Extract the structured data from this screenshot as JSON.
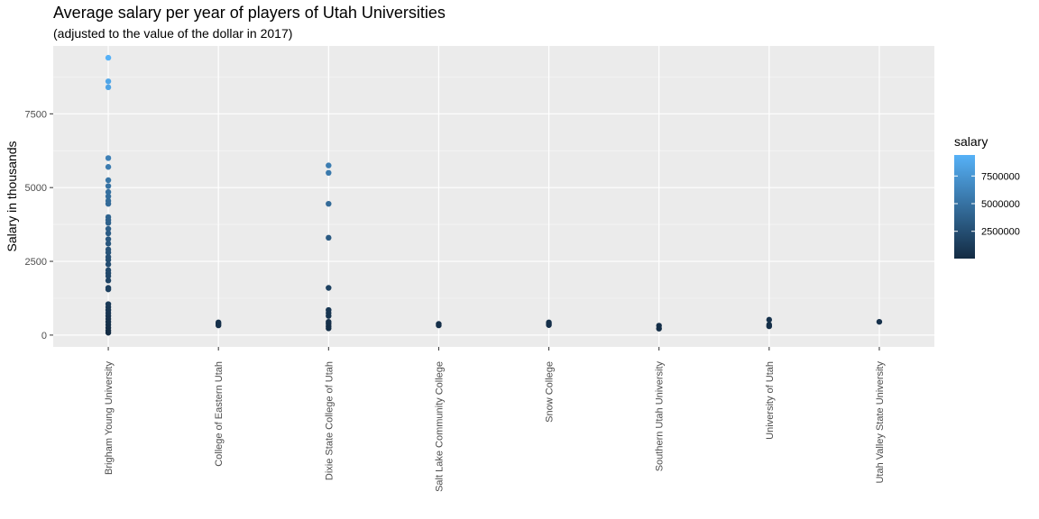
{
  "chart_data": {
    "type": "scatter",
    "title": "Average salary per year of players of Utah Universities",
    "subtitle": "(adjusted to the value of the dollar in 2017)",
    "xlabel": "",
    "ylabel": "Salary in thousands",
    "categories": [
      "Brigham Young University",
      "College of Eastern Utah",
      "Dixie State College of Utah",
      "Salt Lake Community College",
      "Snow College",
      "Southern Utah University",
      "University of Utah",
      "Utah Valley State University"
    ],
    "ylim": [
      -400,
      9800
    ],
    "yticks": [
      0,
      2500,
      5000,
      7500
    ],
    "grid": true,
    "legend": {
      "title": "salary",
      "placement": "right",
      "labels": [
        "7500000",
        "5000000",
        "2500000"
      ],
      "label_values": [
        7500000,
        5000000,
        2500000
      ],
      "range": [
        30000,
        9400000
      ],
      "color_low": "#132B43",
      "color_high": "#56B1F7"
    },
    "colors": {
      "panel": "#EBEBEB",
      "grid_major": "#FFFFFF",
      "grid_minor": "#F5F5F5"
    },
    "points": [
      {
        "category": "Brigham Young University",
        "y": 9400
      },
      {
        "category": "Brigham Young University",
        "y": 8600
      },
      {
        "category": "Brigham Young University",
        "y": 8400
      },
      {
        "category": "Brigham Young University",
        "y": 6000
      },
      {
        "category": "Brigham Young University",
        "y": 5700
      },
      {
        "category": "Brigham Young University",
        "y": 5250
      },
      {
        "category": "Brigham Young University",
        "y": 5050
      },
      {
        "category": "Brigham Young University",
        "y": 4850
      },
      {
        "category": "Brigham Young University",
        "y": 4700
      },
      {
        "category": "Brigham Young University",
        "y": 4550
      },
      {
        "category": "Brigham Young University",
        "y": 4450
      },
      {
        "category": "Brigham Young University",
        "y": 4000
      },
      {
        "category": "Brigham Young University",
        "y": 3900
      },
      {
        "category": "Brigham Young University",
        "y": 3800
      },
      {
        "category": "Brigham Young University",
        "y": 3600
      },
      {
        "category": "Brigham Young University",
        "y": 3450
      },
      {
        "category": "Brigham Young University",
        "y": 3250
      },
      {
        "category": "Brigham Young University",
        "y": 3100
      },
      {
        "category": "Brigham Young University",
        "y": 2900
      },
      {
        "category": "Brigham Young University",
        "y": 2800
      },
      {
        "category": "Brigham Young University",
        "y": 2650
      },
      {
        "category": "Brigham Young University",
        "y": 2550
      },
      {
        "category": "Brigham Young University",
        "y": 2400
      },
      {
        "category": "Brigham Young University",
        "y": 2200
      },
      {
        "category": "Brigham Young University",
        "y": 2100
      },
      {
        "category": "Brigham Young University",
        "y": 2000
      },
      {
        "category": "Brigham Young University",
        "y": 1850
      },
      {
        "category": "Brigham Young University",
        "y": 1600
      },
      {
        "category": "Brigham Young University",
        "y": 1550
      },
      {
        "category": "Brigham Young University",
        "y": 1050
      },
      {
        "category": "Brigham Young University",
        "y": 950
      },
      {
        "category": "Brigham Young University",
        "y": 850
      },
      {
        "category": "Brigham Young University",
        "y": 750
      },
      {
        "category": "Brigham Young University",
        "y": 650
      },
      {
        "category": "Brigham Young University",
        "y": 550
      },
      {
        "category": "Brigham Young University",
        "y": 450
      },
      {
        "category": "Brigham Young University",
        "y": 350
      },
      {
        "category": "Brigham Young University",
        "y": 250
      },
      {
        "category": "Brigham Young University",
        "y": 150
      },
      {
        "category": "Brigham Young University",
        "y": 80
      },
      {
        "category": "College of Eastern Utah",
        "y": 430
      },
      {
        "category": "College of Eastern Utah",
        "y": 380
      },
      {
        "category": "College of Eastern Utah",
        "y": 330
      },
      {
        "category": "Dixie State College of Utah",
        "y": 5750
      },
      {
        "category": "Dixie State College of Utah",
        "y": 5500
      },
      {
        "category": "Dixie State College of Utah",
        "y": 4450
      },
      {
        "category": "Dixie State College of Utah",
        "y": 3300
      },
      {
        "category": "Dixie State College of Utah",
        "y": 1600
      },
      {
        "category": "Dixie State College of Utah",
        "y": 850
      },
      {
        "category": "Dixie State College of Utah",
        "y": 750
      },
      {
        "category": "Dixie State College of Utah",
        "y": 650
      },
      {
        "category": "Dixie State College of Utah",
        "y": 450
      },
      {
        "category": "Dixie State College of Utah",
        "y": 380
      },
      {
        "category": "Dixie State College of Utah",
        "y": 300
      },
      {
        "category": "Dixie State College of Utah",
        "y": 230
      },
      {
        "category": "Salt Lake Community College",
        "y": 380
      },
      {
        "category": "Salt Lake Community College",
        "y": 330
      },
      {
        "category": "Snow College",
        "y": 430
      },
      {
        "category": "Snow College",
        "y": 380
      },
      {
        "category": "Snow College",
        "y": 340
      },
      {
        "category": "Southern Utah University",
        "y": 320
      },
      {
        "category": "Southern Utah University",
        "y": 220
      },
      {
        "category": "University of Utah",
        "y": 520
      },
      {
        "category": "University of Utah",
        "y": 350
      },
      {
        "category": "University of Utah",
        "y": 300
      },
      {
        "category": "Utah Valley State University",
        "y": 450
      }
    ]
  }
}
